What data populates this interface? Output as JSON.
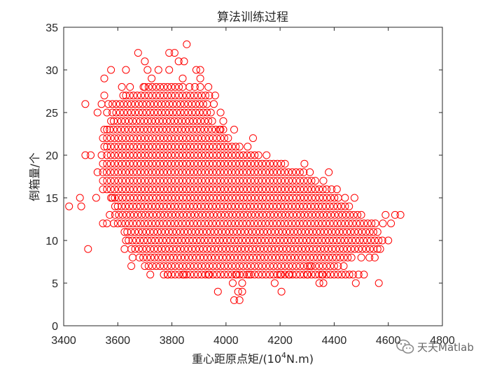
{
  "chart_data": {
    "type": "scatter",
    "title": "算法训练过程",
    "xlabel": "重心距原点矩/(10^4N.m)",
    "xlabel_main": "重心距原点矩/(10",
    "xlabel_exp": "4",
    "xlabel_tail": "N.m)",
    "ylabel": "倒箱量/个",
    "xlim": [
      3400,
      4800
    ],
    "ylim": [
      0,
      35
    ],
    "xticks": [
      "3400",
      "3600",
      "3800",
      "4000",
      "4200",
      "4400",
      "4600",
      "4800"
    ],
    "yticks": [
      "0",
      "5",
      "10",
      "15",
      "20",
      "25",
      "30",
      "35"
    ],
    "marker": "open-circle",
    "color": "#ff0000",
    "grid": false,
    "point_bands": [
      {
        "y": 3,
        "x": [
          4030,
          4050
        ]
      },
      {
        "y": 4,
        "x": [
          3970,
          4045,
          4060,
          4205
        ]
      },
      {
        "y": 5,
        "x": [
          4025,
          4060,
          4180,
          4345,
          4360,
          4480,
          4565
        ]
      },
      {
        "y": 6,
        "x": [
          3720,
          3785,
          3845,
          3935,
          4040,
          4085,
          4200,
          4235,
          4300,
          4355,
          4490,
          4510
        ]
      },
      {
        "y": 7,
        "x": [
          3650,
          4310,
          4435
        ]
      },
      {
        "y": 8,
        "x": [
          3655,
          4500,
          4530,
          4550
        ]
      },
      {
        "y": 9,
        "x": [
          3490,
          3625,
          4570
        ]
      },
      {
        "y": 10,
        "x": [
          3630,
          4600
        ]
      },
      {
        "y": 11,
        "x": [
          3625,
          4560
        ]
      },
      {
        "y": 12,
        "x": [
          3545,
          3560,
          3585,
          4580,
          4610
        ]
      },
      {
        "y": 13,
        "x": [
          3570,
          4590,
          4625,
          4645
        ]
      },
      {
        "y": 14,
        "x": [
          3420,
          3465,
          3590,
          4455
        ]
      },
      {
        "y": 15,
        "x": [
          3460,
          3520,
          3580,
          4440,
          4475
        ]
      },
      {
        "y": 16,
        "x": [
          3545,
          4390,
          4410
        ]
      },
      {
        "y": 17,
        "x": [
          3545,
          4360
        ]
      },
      {
        "y": 18,
        "x": [
          3525,
          4310,
          4380
        ]
      },
      {
        "y": 19,
        "x": [
          3545,
          4290
        ]
      },
      {
        "y": 20,
        "x": [
          3480,
          3500,
          3540,
          4150
        ]
      },
      {
        "y": 21,
        "x": [
          3550,
          4080
        ]
      },
      {
        "y": 22,
        "x": [
          3545,
          4100
        ]
      },
      {
        "y": 23,
        "x": [
          3550,
          3560,
          3980,
          4030
        ]
      },
      {
        "y": 24,
        "x": [
          3575,
          3990
        ]
      },
      {
        "y": 25,
        "x": [
          3525,
          3560,
          3980
        ]
      },
      {
        "y": 26,
        "x": [
          3480,
          3540,
          3565,
          3955
        ]
      },
      {
        "y": 27,
        "x": [
          3550,
          3620,
          3960
        ]
      },
      {
        "y": 28,
        "x": [
          3615,
          3645,
          3695,
          3865,
          3885,
          3905,
          3935
        ]
      },
      {
        "y": 29,
        "x": [
          3550,
          3725,
          3840,
          3905
        ]
      },
      {
        "y": 30,
        "x": [
          3575,
          3630,
          3710,
          3750,
          3790,
          3890,
          3905
        ]
      },
      {
        "y": 31,
        "x": [
          3700,
          3825,
          3845
        ]
      },
      {
        "y": 32,
        "x": [
          3675,
          3790,
          3810
        ]
      },
      {
        "y": 33,
        "x": [
          3855
        ]
      }
    ],
    "dense_band_x_ranges": [
      {
        "y": 6,
        "x": [
          3770,
          4470
        ]
      },
      {
        "y": 7,
        "x": [
          3700,
          4420
        ]
      },
      {
        "y": 8,
        "x": [
          3680,
          4470
        ]
      },
      {
        "y": 9,
        "x": [
          3650,
          4560
        ]
      },
      {
        "y": 10,
        "x": [
          3640,
          4580
        ]
      },
      {
        "y": 11,
        "x": [
          3635,
          4550
        ]
      },
      {
        "y": 12,
        "x": [
          3600,
          4560
        ]
      },
      {
        "y": 13,
        "x": [
          3590,
          4500
        ]
      },
      {
        "y": 14,
        "x": [
          3600,
          4440
        ]
      },
      {
        "y": 15,
        "x": [
          3575,
          4420
        ]
      },
      {
        "y": 16,
        "x": [
          3560,
          4380
        ]
      },
      {
        "y": 17,
        "x": [
          3560,
          4330
        ]
      },
      {
        "y": 18,
        "x": [
          3545,
          4290
        ]
      },
      {
        "y": 19,
        "x": [
          3560,
          4220
        ]
      },
      {
        "y": 20,
        "x": [
          3560,
          4120
        ]
      },
      {
        "y": 21,
        "x": [
          3560,
          4060
        ]
      },
      {
        "y": 22,
        "x": [
          3560,
          4020
        ]
      },
      {
        "y": 23,
        "x": [
          3570,
          3990
        ]
      },
      {
        "y": 24,
        "x": [
          3585,
          3960
        ]
      },
      {
        "y": 25,
        "x": [
          3580,
          3950
        ]
      },
      {
        "y": 26,
        "x": [
          3580,
          3940
        ]
      },
      {
        "y": 27,
        "x": [
          3630,
          3940
        ]
      },
      {
        "y": 28,
        "x": [
          3700,
          3840
        ]
      }
    ]
  },
  "watermark": {
    "text": "天天Matlab",
    "icon": "wechat-icon"
  }
}
